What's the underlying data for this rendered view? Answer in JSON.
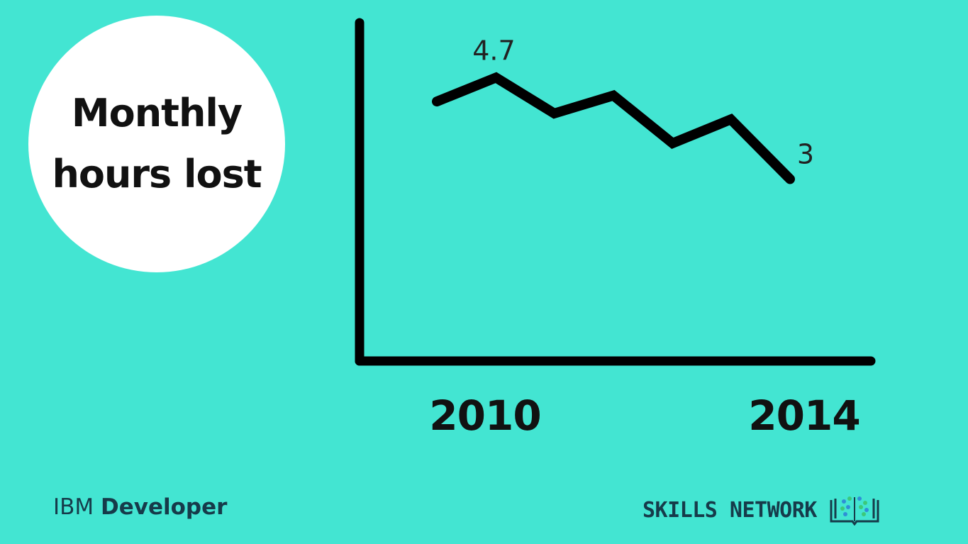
{
  "title_lines": [
    "Monthly",
    "hours lost"
  ],
  "chart_data": {
    "type": "line",
    "title": "Monthly hours lost",
    "x": [
      2010,
      2010.67,
      2011.33,
      2012,
      2012.67,
      2013.33,
      2014
    ],
    "values": [
      4.3,
      4.7,
      4.1,
      4.4,
      3.6,
      4.0,
      3.0
    ],
    "x_tick_labels": [
      "2010",
      "2014"
    ],
    "data_labels": [
      {
        "index": 1,
        "text": "4.7"
      },
      {
        "index": 6,
        "text": "3"
      }
    ],
    "ylim": [
      0,
      6.0
    ],
    "grid": false,
    "line_color": "#000000"
  },
  "footer": {
    "left_light": "IBM",
    "left_bold": "Developer",
    "right_text": "SKILLS NETWORK",
    "right_icon": "book-network-icon"
  },
  "colors": {
    "background": "#43e5d2",
    "circle": "#ffffff",
    "text_dark": "#111111",
    "brand": "#163b4a"
  }
}
